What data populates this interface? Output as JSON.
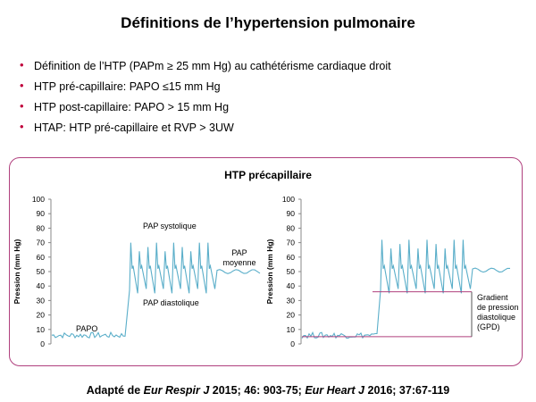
{
  "slide": {
    "title": "Définitions de l’hypertension pulmonaire",
    "bullets": [
      "Définition de l’HTP (PAPm ≥ 25 mm Hg) au cathétérisme cardiaque droit",
      "HTP pré-capillaire: PAPO ≤15 mm Hg",
      "HTP post-capillaire: PAPO > 15 mm Hg",
      "HTAP: HTP pré-capillaire et RVP > 3UW"
    ],
    "panel_title": "HTP précapillaire",
    "source_parts": {
      "p1": "Adapté de ",
      "j1": "Eur Respir J",
      "p2": " 2015; 46: 903-75; ",
      "j2": "Eur Heart J",
      "p3": " 2016; 37:67-119"
    },
    "colors": {
      "trace": "#5aaec9",
      "panel_border": "#b0407e",
      "bullet": "#c0003c",
      "gradient_line": "#b0407e"
    }
  },
  "chart_data": [
    {
      "type": "line",
      "ylabel": "Pression (mm Hg)",
      "ylim": [
        0,
        100
      ],
      "yticks": [
        0,
        10,
        20,
        30,
        40,
        50,
        60,
        70,
        80,
        90,
        100
      ],
      "annotations": [
        "PAPO",
        "PAP systolique",
        "PAP diastolique",
        "PAP moyenne"
      ],
      "series": [
        {
          "segments": {
            "papo": {
              "level": 6,
              "amp": 2
            },
            "pulsatile": {
              "systolic": 70,
              "diastolic": 37,
              "beats": 10
            },
            "mean": {
              "level": 50
            }
          }
        }
      ]
    },
    {
      "type": "line",
      "ylabel": "Pression (mm Hg)",
      "ylim": [
        0,
        100
      ],
      "yticks": [
        0,
        10,
        20,
        30,
        40,
        50,
        60,
        70,
        80,
        90,
        100
      ],
      "annotations": [
        "Gradient de pression diastolique (GPD)"
      ],
      "series": [
        {
          "segments": {
            "papo": {
              "level": 6,
              "amp": 2
            },
            "pulsatile": {
              "systolic": 72,
              "diastolic": 37,
              "beats": 10
            },
            "mean": {
              "level": 51
            }
          }
        }
      ],
      "gradient": {
        "from": 5,
        "to": 36
      }
    }
  ]
}
